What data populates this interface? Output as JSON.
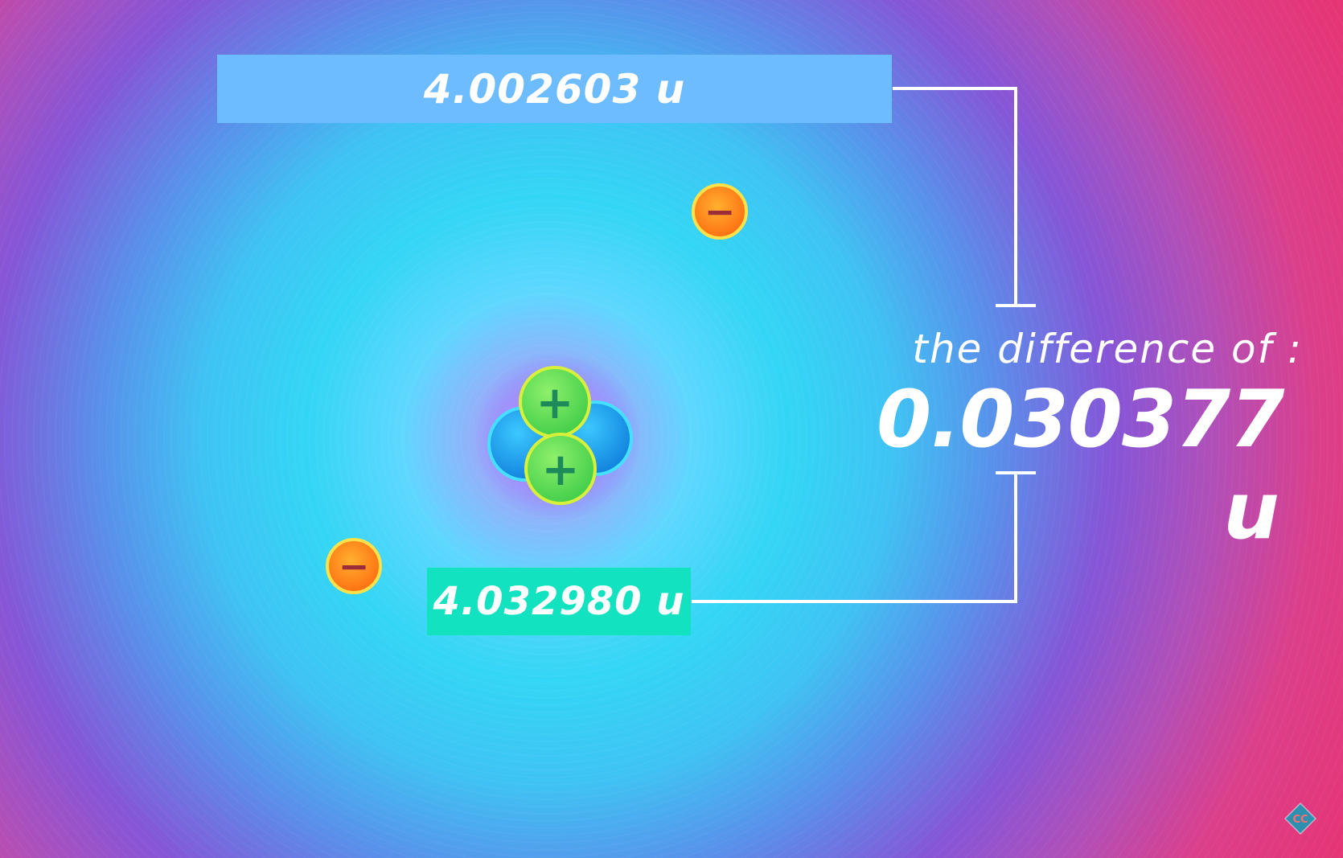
{
  "diagram": {
    "top_mass": "4.002603 u",
    "bottom_mass": "4.032980 u",
    "difference_caption": "the difference of :",
    "difference_value": "0.030377 u",
    "proton_symbol": "+",
    "electron_symbol": "−",
    "logo_text": "CC"
  },
  "colors": {
    "top_bar": "#6cbcff",
    "bottom_bar": "#12e2bf",
    "proton": "#6fe25a",
    "neutron": "#1aa0f0",
    "electron": "#ff9a1a",
    "electron_ring": "#ffe14a",
    "bracket": "#ffffff"
  }
}
